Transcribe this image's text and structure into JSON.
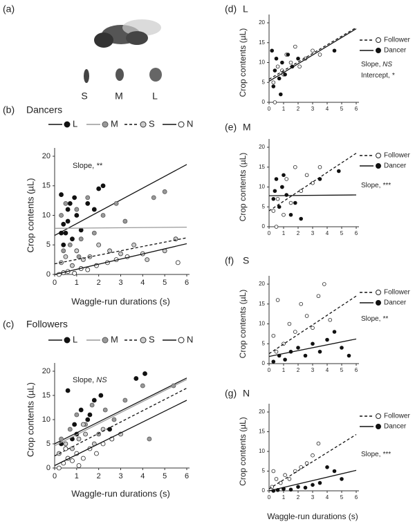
{
  "figure_a": {
    "label": "(a)",
    "sizes": [
      "S",
      "M",
      "L"
    ]
  },
  "chart_data": [
    {
      "type": "scatter",
      "panel": "(b)",
      "title": "Dancers",
      "x_label": "Waggle-run durations (s)",
      "y_label": "Crop contents (µL)",
      "xlim": [
        0,
        6
      ],
      "ylim": [
        0,
        20
      ],
      "xticks": [
        0,
        1,
        2,
        3,
        4,
        5,
        6
      ],
      "yticks": [
        0,
        5,
        10,
        15,
        20
      ],
      "annotations": [
        {
          "text": "Slope,",
          "emph": "**"
        }
      ],
      "series": [
        {
          "name": "L",
          "marker": "filled",
          "line_style": "solid",
          "color": "#111",
          "x": [
            0.3,
            0.4,
            0.5,
            0.6,
            0.7,
            0.8,
            1.0,
            1.2,
            1.5,
            1.8,
            2.0,
            2.2,
            0.4,
            0.6,
            0.9,
            0.3
          ],
          "y": [
            13.5,
            8.5,
            7,
            9,
            12,
            6,
            10,
            7.5,
            12,
            11,
            14.5,
            15,
            5,
            11,
            13,
            7
          ],
          "fit_x": [
            0,
            6
          ],
          "fit_y": [
            6.6,
            18.6
          ]
        },
        {
          "name": "M",
          "marker": "grey",
          "line_style": "solid",
          "color": "#999",
          "x": [
            0.3,
            0.5,
            0.7,
            1.0,
            1.2,
            1.5,
            1.8,
            2.2,
            2.8,
            3.2,
            4.5,
            5.0,
            0.4,
            1.1
          ],
          "y": [
            10,
            12,
            5,
            11,
            6,
            13,
            7,
            10,
            12,
            9,
            13,
            14,
            4,
            3
          ],
          "fit_x": [
            0,
            6
          ],
          "fit_y": [
            7.8,
            8.0
          ]
        },
        {
          "name": "S",
          "marker": "plus",
          "line_style": "dashed",
          "color": "#111",
          "x": [
            0.3,
            0.5,
            0.8,
            1.0,
            1.3,
            1.6,
            2.0,
            2.5,
            3.0,
            3.6,
            4.2,
            5.0,
            5.5
          ],
          "y": [
            2,
            3,
            1.5,
            4,
            2.5,
            3,
            5,
            4,
            3.5,
            5,
            2.5,
            4,
            6
          ],
          "fit_x": [
            0,
            6
          ],
          "fit_y": [
            1.8,
            6.2
          ]
        },
        {
          "name": "N",
          "marker": "open",
          "line_style": "solid",
          "color": "#111",
          "x": [
            0.2,
            0.4,
            0.6,
            0.9,
            1.2,
            1.5,
            1.9,
            2.4,
            2.8,
            3.3,
            4.0,
            5.6
          ],
          "y": [
            0,
            0.3,
            0.5,
            0.2,
            1,
            0.8,
            1.5,
            2,
            2.5,
            3,
            3.5,
            2
          ],
          "fit_x": [
            0,
            6
          ],
          "fit_y": [
            0,
            5.2
          ]
        }
      ]
    },
    {
      "type": "scatter",
      "panel": "(c)",
      "title": "Followers",
      "x_label": "Waggle-run durations (s)",
      "y_label": "Crop contents (µL)",
      "xlim": [
        0,
        6
      ],
      "ylim": [
        0,
        20
      ],
      "xticks": [
        0,
        1,
        2,
        3,
        4,
        5,
        6
      ],
      "yticks": [
        0,
        5,
        10,
        15,
        20
      ],
      "annotations": [
        {
          "text": "Slope,",
          "emph": "NS"
        }
      ],
      "series": [
        {
          "name": "L",
          "marker": "filled",
          "line_style": "solid",
          "color": "#111",
          "x": [
            0.3,
            0.6,
            0.9,
            1.2,
            1.5,
            1.8,
            2.1,
            2.5,
            0.5,
            1.0,
            3.7,
            4.1,
            0.8,
            1.6
          ],
          "y": [
            5,
            16,
            9,
            12,
            10,
            14,
            15,
            8,
            4,
            7,
            18.5,
            19.5,
            6,
            11
          ],
          "fit_x": [
            0,
            6
          ],
          "fit_y": [
            5,
            18.6
          ]
        },
        {
          "name": "M",
          "marker": "grey",
          "line_style": "solid",
          "color": "#999",
          "x": [
            0.3,
            0.7,
            1.0,
            1.4,
            1.7,
            2.0,
            2.3,
            2.7,
            3.2,
            4.0,
            4.3,
            5.4
          ],
          "y": [
            6,
            8,
            11,
            9,
            13,
            7,
            12,
            10,
            14,
            17,
            6,
            17
          ],
          "fit_x": [
            0,
            6
          ],
          "fit_y": [
            4.6,
            18.3
          ]
        },
        {
          "name": "S",
          "marker": "plus",
          "line_style": "dashed",
          "color": "#111",
          "x": [
            0.2,
            0.5,
            0.8,
            1.1,
            1.4,
            1.8,
            2.2,
            2.6,
            3.0,
            0.6,
            1.3
          ],
          "y": [
            3,
            5,
            4,
            6,
            7,
            5,
            8,
            6,
            7,
            2,
            9
          ],
          "fit_x": [
            0,
            6
          ],
          "fit_y": [
            2.5,
            16.5
          ]
        },
        {
          "name": "N",
          "marker": "open",
          "line_style": "solid",
          "color": "#111",
          "x": [
            0.2,
            0.4,
            0.6,
            0.8,
            1.0,
            1.3,
            1.6,
            1.9,
            2.2,
            2.6,
            0.5,
            1.1
          ],
          "y": [
            0,
            1,
            2,
            1.5,
            3,
            2,
            4,
            3,
            5,
            6,
            4,
            0.5
          ],
          "fit_x": [
            0,
            6
          ],
          "fit_y": [
            0.5,
            14
          ]
        }
      ]
    },
    {
      "type": "scatter",
      "panel": "(d)",
      "title": "L",
      "y_label": "Crop contents (µL)",
      "xlim": [
        0,
        6
      ],
      "ylim": [
        0,
        20
      ],
      "xticks": [
        0,
        1,
        2,
        3,
        4,
        5,
        6
      ],
      "yticks": [
        0,
        5,
        10,
        15,
        20
      ],
      "annotations": [
        {
          "text": "Slope,",
          "emph": "NS"
        },
        {
          "text": "Intercept,",
          "emph": "*"
        }
      ],
      "series": [
        {
          "name": "Follower",
          "marker": "open",
          "line_style": "dashed",
          "color": "#111",
          "x": [
            0.3,
            0.6,
            0.9,
            1.2,
            1.5,
            1.8,
            2.1,
            2.5,
            3.0,
            3.5,
            0.4,
            1.0
          ],
          "y": [
            5,
            9,
            8,
            12,
            10,
            14,
            9,
            11,
            13,
            12,
            0,
            7
          ],
          "fit_x": [
            0,
            6
          ],
          "fit_y": [
            5.8,
            18.8
          ]
        },
        {
          "name": "Dancer",
          "marker": "filled",
          "line_style": "solid",
          "color": "#111",
          "x": [
            0.2,
            0.4,
            0.5,
            0.7,
            0.9,
            1.1,
            1.3,
            1.6,
            2.0,
            0.3,
            0.8,
            4.5
          ],
          "y": [
            13,
            8,
            11,
            6,
            10,
            7,
            12,
            9,
            11,
            4,
            2,
            13
          ],
          "fit_x": [
            0,
            6
          ],
          "fit_y": [
            5.3,
            18.5
          ]
        }
      ]
    },
    {
      "type": "scatter",
      "panel": "(e)",
      "title": "M",
      "y_label": "Crop contents (µL)",
      "xlim": [
        0,
        6
      ],
      "ylim": [
        0,
        20
      ],
      "xticks": [
        0,
        1,
        2,
        3,
        4,
        5,
        6
      ],
      "yticks": [
        0,
        5,
        10,
        15,
        20
      ],
      "annotations": [
        {
          "text": "Slope,",
          "emph": "***"
        }
      ],
      "series": [
        {
          "name": "Follower",
          "marker": "open",
          "line_style": "dashed",
          "color": "#111",
          "x": [
            0.3,
            0.6,
            0.9,
            1.2,
            1.5,
            1.8,
            2.2,
            2.6,
            3.0,
            3.5,
            0.5,
            1.0
          ],
          "y": [
            4,
            7,
            10,
            12,
            6,
            15,
            9,
            13,
            11,
            15,
            0,
            3
          ],
          "fit_x": [
            0,
            6
          ],
          "fit_y": [
            4,
            18.5
          ]
        },
        {
          "name": "Dancer",
          "marker": "filled",
          "line_style": "solid",
          "color": "#111",
          "x": [
            0.3,
            0.5,
            0.7,
            0.9,
            1.2,
            1.5,
            1.8,
            2.2,
            3.5,
            4.8,
            0.4,
            1.0
          ],
          "y": [
            7,
            12,
            5,
            10,
            8,
            3,
            6,
            2,
            12,
            14,
            9,
            13
          ],
          "fit_x": [
            0,
            6
          ],
          "fit_y": [
            7.8,
            8.0
          ]
        }
      ]
    },
    {
      "type": "scatter",
      "panel": "(f)",
      "title": "S",
      "y_label": "Crop contents (µL)",
      "xlim": [
        0,
        6
      ],
      "ylim": [
        0,
        20
      ],
      "xticks": [
        0,
        1,
        2,
        3,
        4,
        5,
        6
      ],
      "yticks": [
        0,
        5,
        10,
        15,
        20
      ],
      "annotations": [
        {
          "text": "Slope,",
          "emph": "**"
        }
      ],
      "series": [
        {
          "name": "Follower",
          "marker": "open",
          "line_style": "dashed",
          "color": "#111",
          "x": [
            0.3,
            0.6,
            1.0,
            1.4,
            1.8,
            2.2,
            2.6,
            3.0,
            3.4,
            3.8,
            4.2,
            0.5
          ],
          "y": [
            7,
            16,
            5,
            10,
            8,
            15,
            12,
            9,
            17,
            20,
            11,
            3
          ],
          "fit_x": [
            0,
            6
          ],
          "fit_y": [
            2.5,
            17
          ]
        },
        {
          "name": "Dancer",
          "marker": "filled",
          "line_style": "solid",
          "color": "#111",
          "x": [
            0.3,
            0.7,
            1.1,
            1.5,
            2.0,
            2.5,
            3.0,
            3.5,
            4.0,
            4.5,
            5.0,
            5.5
          ],
          "y": [
            0.5,
            2,
            1,
            3,
            4,
            2,
            5,
            3,
            6,
            8,
            4,
            2
          ],
          "fit_x": [
            0,
            6
          ],
          "fit_y": [
            1.8,
            6.2
          ]
        }
      ]
    },
    {
      "type": "scatter",
      "panel": "(g)",
      "title": "N",
      "x_label": "Waggle-run durations (s)",
      "y_label": "Crop contents (µL)",
      "xlim": [
        0,
        6
      ],
      "ylim": [
        0,
        20
      ],
      "xticks": [
        0,
        1,
        2,
        3,
        4,
        5,
        6
      ],
      "yticks": [
        0,
        5,
        10,
        15,
        20
      ],
      "annotations": [
        {
          "text": "Slope,",
          "emph": "***"
        }
      ],
      "series": [
        {
          "name": "Follower",
          "marker": "open",
          "line_style": "dashed",
          "color": "#111",
          "x": [
            0.2,
            0.5,
            0.8,
            1.1,
            1.4,
            1.8,
            2.2,
            2.6,
            3.0,
            3.4,
            0.3,
            1.0
          ],
          "y": [
            1,
            3,
            2,
            4,
            3,
            5,
            6,
            7,
            9,
            12,
            5,
            0.5
          ],
          "fit_x": [
            0,
            6
          ],
          "fit_y": [
            0.5,
            14.3
          ]
        },
        {
          "name": "Dancer",
          "marker": "filled",
          "line_style": "solid",
          "color": "#111",
          "x": [
            0.3,
            0.6,
            1.0,
            1.5,
            2.0,
            2.5,
            3.0,
            3.5,
            4.0,
            4.5,
            5.0
          ],
          "y": [
            0,
            0.2,
            0.5,
            0.3,
            1,
            0.8,
            1.5,
            2,
            6,
            5,
            3
          ],
          "fit_x": [
            0,
            6
          ],
          "fit_y": [
            0,
            5.2
          ]
        }
      ]
    }
  ]
}
